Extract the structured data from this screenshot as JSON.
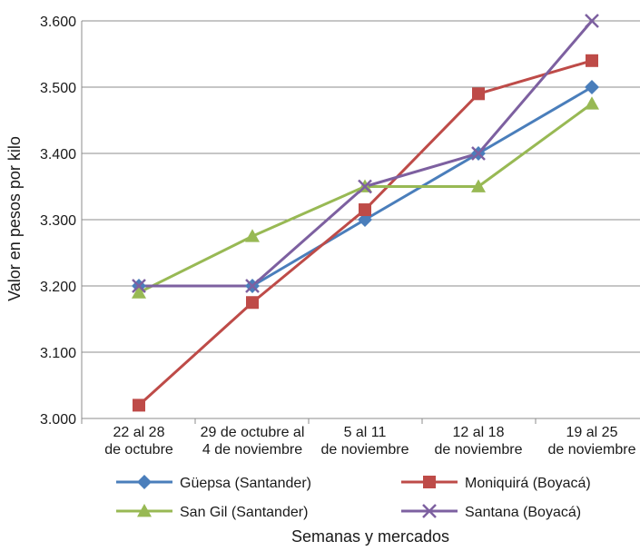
{
  "chart_data": {
    "type": "line",
    "title": "",
    "ylabel": "Valor en pesos por kilo",
    "xlabel": "Semanas y mercados",
    "ylim": [
      3000,
      3600
    ],
    "yticks": [
      3000,
      3100,
      3200,
      3300,
      3400,
      3500,
      3600
    ],
    "ytick_labels": [
      "3.000",
      "3.100",
      "3.200",
      "3.300",
      "3.400",
      "3.500",
      "3.600"
    ],
    "grid": true,
    "legend_position": "bottom",
    "categories": [
      [
        "22 al 28",
        "de octubre"
      ],
      [
        "29 de octubre al",
        "4 de noviembre"
      ],
      [
        "5 al 11",
        "de noviembre"
      ],
      [
        "12 al 18",
        "de noviembre"
      ],
      [
        "19 al 25",
        "de noviembre"
      ]
    ],
    "series": [
      {
        "name": "Güepsa (Santander)",
        "color": "#4a7ebb",
        "marker": "diamond",
        "values": [
          3200,
          3200,
          3300,
          3400,
          3500
        ]
      },
      {
        "name": "Moniquirá (Boyacá)",
        "color": "#be4b48",
        "marker": "square",
        "values": [
          3020,
          3175,
          3315,
          3490,
          3540
        ]
      },
      {
        "name": "San Gil (Santander)",
        "color": "#98b954",
        "marker": "triangle",
        "values": [
          3190,
          3275,
          3350,
          3350,
          3475
        ]
      },
      {
        "name": "Santana (Boyacá)",
        "color": "#7d60a0",
        "marker": "x",
        "values": [
          3200,
          3200,
          3350,
          3400,
          3600
        ]
      }
    ]
  }
}
